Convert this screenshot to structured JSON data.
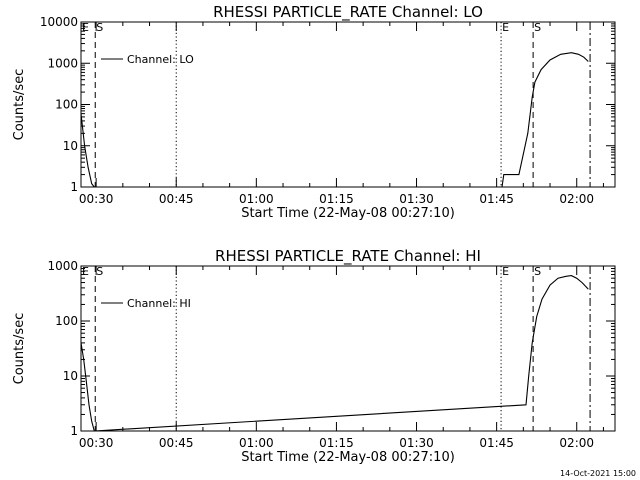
{
  "footer": {
    "timestamp": "14-Oct-2021 15:00"
  },
  "chart_data": [
    {
      "type": "line",
      "title": "RHESSI PARTICLE_RATE Channel: LO",
      "xlabel": "Start Time (22-May-08 00:27:10)",
      "ylabel": "Counts/sec",
      "y_scale": "log",
      "xlim": [
        "00:27:10",
        "02:07:10"
      ],
      "ylim": [
        1,
        10000
      ],
      "x_ticks": [
        "00:30",
        "00:45",
        "01:00",
        "01:15",
        "01:30",
        "01:45",
        "02:00"
      ],
      "y_ticks": [
        1,
        10,
        100,
        1000,
        10000
      ],
      "y_tick_labels": [
        "1",
        "10",
        "100",
        "1000",
        "10000"
      ],
      "legend": {
        "label": "Channel: LO",
        "position": "top-left"
      },
      "series": [
        {
          "name": "Channel: LO",
          "x": [
            "00:27:10",
            "00:27:50",
            "00:28:30",
            "00:29:10",
            "00:29:40",
            "01:46:00",
            "01:46:20",
            "01:49:10",
            "01:50:50",
            "01:51:40",
            "01:52:10",
            "01:53:20",
            "01:55:00",
            "01:57:00",
            "01:59:00",
            "02:00:20",
            "02:01:20",
            "02:02:10"
          ],
          "y": [
            60,
            10,
            3,
            1.2,
            1,
            1,
            2,
            2,
            20,
            150,
            350,
            700,
            1200,
            1650,
            1800,
            1650,
            1400,
            1100
          ]
        }
      ],
      "markers": [
        {
          "label": "E",
          "time": "00:27:10",
          "style": "dashed"
        },
        {
          "label": "S",
          "time": "00:29:50",
          "style": "dashed"
        },
        {
          "label": "",
          "time": "00:45:00",
          "style": "dotted"
        },
        {
          "label": "E",
          "time": "01:45:50",
          "style": "dotted"
        },
        {
          "label": "S",
          "time": "01:51:50",
          "style": "dashed"
        },
        {
          "label": "",
          "time": "02:02:30",
          "style": "dashdot"
        }
      ]
    },
    {
      "type": "line",
      "title": "RHESSI PARTICLE_RATE Channel: HI",
      "xlabel": "Start Time (22-May-08 00:27:10)",
      "ylabel": "Counts/sec",
      "y_scale": "log",
      "xlim": [
        "00:27:10",
        "02:07:10"
      ],
      "ylim": [
        1,
        1000
      ],
      "x_ticks": [
        "00:30",
        "00:45",
        "01:00",
        "01:15",
        "01:30",
        "01:45",
        "02:00"
      ],
      "y_ticks": [
        1,
        10,
        100,
        1000
      ],
      "y_tick_labels": [
        "1",
        "10",
        "100",
        "1000"
      ],
      "legend": {
        "label": "Channel: HI",
        "position": "top-left"
      },
      "series": [
        {
          "name": "Channel: HI",
          "x": [
            "00:27:10",
            "00:27:40",
            "00:28:10",
            "00:28:40",
            "00:29:10",
            "00:29:40",
            "01:50:30",
            "01:51:00",
            "01:51:40",
            "01:52:30",
            "01:53:30",
            "01:55:00",
            "01:56:30",
            "01:58:00",
            "01:59:00",
            "02:00:00",
            "02:01:00",
            "02:02:10"
          ],
          "y": [
            40,
            20,
            8,
            3,
            1.5,
            1,
            3,
            10,
            40,
            120,
            250,
            450,
            600,
            650,
            670,
            600,
            500,
            380
          ]
        }
      ],
      "markers": [
        {
          "label": "E",
          "time": "00:27:10",
          "style": "dashed"
        },
        {
          "label": "S",
          "time": "00:29:50",
          "style": "dashed"
        },
        {
          "label": "",
          "time": "00:45:00",
          "style": "dotted"
        },
        {
          "label": "E",
          "time": "01:45:50",
          "style": "dotted"
        },
        {
          "label": "S",
          "time": "01:51:50",
          "style": "dashed"
        },
        {
          "label": "",
          "time": "02:02:30",
          "style": "dashdot"
        }
      ]
    }
  ]
}
